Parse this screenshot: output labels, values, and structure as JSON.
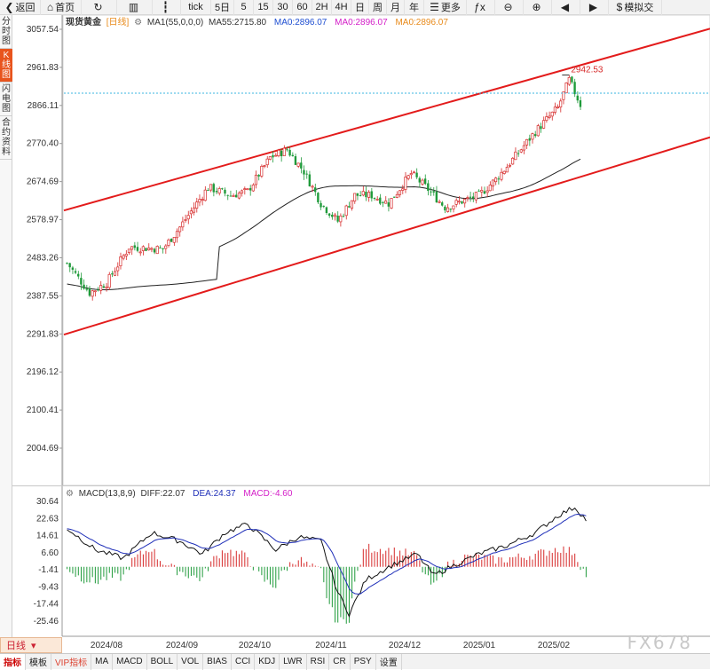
{
  "toolbar": {
    "items": [
      {
        "label": "返回",
        "icon": "back-arrow-icon",
        "glyph": "❮",
        "w": 46
      },
      {
        "label": "首页",
        "icon": "home-icon",
        "glyph": "⌂",
        "w": 46
      },
      {
        "label": "",
        "icon": "refresh-icon",
        "glyph": "↻",
        "w": 40
      },
      {
        "label": "",
        "icon": "chart-bars-icon",
        "glyph": "▥",
        "w": 40
      },
      {
        "label": "",
        "icon": "candle-icon",
        "glyph": "┇",
        "w": 32
      },
      {
        "label": "tick",
        "icon": "",
        "glyph": "",
        "w": 34
      },
      {
        "label": "5日",
        "icon": "",
        "glyph": "",
        "w": 26
      },
      {
        "label": "5",
        "icon": "",
        "glyph": "",
        "w": 22
      },
      {
        "label": "15",
        "icon": "",
        "glyph": "",
        "w": 22
      },
      {
        "label": "30",
        "icon": "",
        "glyph": "",
        "w": 22
      },
      {
        "label": "60",
        "icon": "",
        "glyph": "",
        "w": 22
      },
      {
        "label": "2H",
        "icon": "",
        "glyph": "",
        "w": 22
      },
      {
        "label": "4H",
        "icon": "",
        "glyph": "",
        "w": 22
      },
      {
        "label": "日",
        "icon": "",
        "glyph": "",
        "w": 20
      },
      {
        "label": "周",
        "icon": "",
        "glyph": "",
        "w": 20
      },
      {
        "label": "月",
        "icon": "",
        "glyph": "",
        "w": 20
      },
      {
        "label": "年",
        "icon": "",
        "glyph": "",
        "w": 22
      },
      {
        "label": "更多",
        "icon": "menu-icon",
        "glyph": "☰",
        "w": 48
      },
      {
        "label": "",
        "icon": "formula-icon",
        "glyph": "ƒx",
        "w": 32
      },
      {
        "label": "",
        "icon": "zoom-out-icon",
        "glyph": "⊖",
        "w": 32
      },
      {
        "label": "",
        "icon": "zoom-in-icon",
        "glyph": "⊕",
        "w": 32
      },
      {
        "label": "",
        "icon": "pan-left-icon",
        "glyph": "◀",
        "w": 32
      },
      {
        "label": "",
        "icon": "pan-right-icon",
        "glyph": "▶",
        "w": 32
      },
      {
        "label": "模拟交",
        "icon": "dollar-icon",
        "glyph": "$",
        "w": 60
      }
    ]
  },
  "sidebar": {
    "items": [
      {
        "label": "分时图",
        "active": false
      },
      {
        "label": "K线图",
        "active": true
      },
      {
        "label": "闪电图",
        "active": false
      },
      {
        "label": "合约资料",
        "active": false
      }
    ]
  },
  "legend": {
    "symbol": "现货黄金",
    "period": "[日线]",
    "ma_prefix": "MA1(55,0,0,0)",
    "ma55": "MA55:2715.80",
    "ma0a": "MA0:2896.07",
    "ma0b": "MA0:2896.07",
    "ma0c": "MA0:2896.07",
    "ma0a_color": "#1f4fd1",
    "ma0b_color": "#d41ec8",
    "ma0c_color": "#e88a1a"
  },
  "price_axis": [
    "3057.54",
    "2961.83",
    "2866.11",
    "2770.40",
    "2674.69",
    "2578.97",
    "2483.26",
    "2387.55",
    "2291.83",
    "2196.12",
    "2100.41",
    "2004.69"
  ],
  "price_axis_range": [
    3057.54,
    2004.69
  ],
  "high_label": "2942.53",
  "macd": {
    "title": "MACD(13,8,9)",
    "diff": "DIFF:22.07",
    "dea": "DEA:24.37",
    "macd": "MACD:-4.60",
    "axis": [
      "30.64",
      "22.63",
      "14.61",
      "6.60",
      "-1.41",
      "-9.43",
      "-17.44",
      "-25.46"
    ],
    "axis_range": [
      30.64,
      -25.46
    ]
  },
  "x_axis": [
    "2024/08",
    "2024/09",
    "2024/10",
    "2024/11",
    "2024/12",
    "2025/01",
    "2025/02"
  ],
  "bottom_tabs": [
    {
      "label": "指标",
      "active": true,
      "vip": false
    },
    {
      "label": "模板",
      "active": false,
      "vip": false
    },
    {
      "label": "VIP指标",
      "active": false,
      "vip": true
    },
    {
      "label": "MA",
      "active": false,
      "vip": false
    },
    {
      "label": "MACD",
      "active": false,
      "vip": false
    },
    {
      "label": "BOLL",
      "active": false,
      "vip": false
    },
    {
      "label": "VOL",
      "active": false,
      "vip": false
    },
    {
      "label": "BIAS",
      "active": false,
      "vip": false
    },
    {
      "label": "CCI",
      "active": false,
      "vip": false
    },
    {
      "label": "KDJ",
      "active": false,
      "vip": false
    },
    {
      "label": "LWR",
      "active": false,
      "vip": false
    },
    {
      "label": "RSI",
      "active": false,
      "vip": false
    },
    {
      "label": "CR",
      "active": false,
      "vip": false
    },
    {
      "label": "PSY",
      "active": false,
      "vip": false
    },
    {
      "label": "设置",
      "active": false,
      "vip": false
    }
  ],
  "period_tab": "日线",
  "watermark": "FX678",
  "colors": {
    "up": "#d62a2a",
    "down": "#1f9a3a",
    "channel": "#e31b1b",
    "ma55": "#222222",
    "dea": "#1f2fb8",
    "diff": "#111111"
  },
  "chart_data": {
    "type": "candlestick",
    "period": "daily",
    "symbol": "现货黄金",
    "start": "2024-07-23",
    "end": "2025-02-07",
    "high": 2942.53,
    "last_close": 2868,
    "ma55_last": 2715.8,
    "price_path_anchors": [
      [
        0,
        2470
      ],
      [
        8,
        2395
      ],
      [
        14,
        2420
      ],
      [
        22,
        2510
      ],
      [
        34,
        2505
      ],
      [
        40,
        2560
      ],
      [
        50,
        2660
      ],
      [
        58,
        2640
      ],
      [
        64,
        2650
      ],
      [
        72,
        2735
      ],
      [
        78,
        2755
      ],
      [
        84,
        2700
      ],
      [
        90,
        2620
      ],
      [
        96,
        2575
      ],
      [
        102,
        2640
      ],
      [
        108,
        2640
      ],
      [
        114,
        2620
      ],
      [
        122,
        2695
      ],
      [
        128,
        2655
      ],
      [
        134,
        2610
      ],
      [
        140,
        2625
      ],
      [
        146,
        2640
      ],
      [
        152,
        2680
      ],
      [
        158,
        2730
      ],
      [
        166,
        2800
      ],
      [
        174,
        2860
      ],
      [
        178,
        2930
      ],
      [
        182,
        2868
      ]
    ],
    "channel_upper": [
      [
        "2024-07-23",
        2602
      ],
      [
        "2025-02-28",
        3050
      ]
    ],
    "channel_lower": [
      [
        "2024-07-23",
        2290
      ],
      [
        "2025-02-28",
        2786
      ]
    ],
    "reference_line": 2897,
    "macd_anchors": [
      [
        0,
        18
      ],
      [
        10,
        8
      ],
      [
        20,
        4
      ],
      [
        30,
        16
      ],
      [
        40,
        12
      ],
      [
        48,
        6
      ],
      [
        56,
        16
      ],
      [
        64,
        20
      ],
      [
        74,
        8
      ],
      [
        82,
        14
      ],
      [
        90,
        12
      ],
      [
        96,
        -12
      ],
      [
        100,
        -22
      ],
      [
        106,
        -6
      ],
      [
        114,
        0
      ],
      [
        124,
        6
      ],
      [
        130,
        -4
      ],
      [
        136,
        0
      ],
      [
        146,
        6
      ],
      [
        156,
        10
      ],
      [
        166,
        16
      ],
      [
        174,
        24
      ],
      [
        180,
        28
      ],
      [
        184,
        22
      ]
    ]
  }
}
